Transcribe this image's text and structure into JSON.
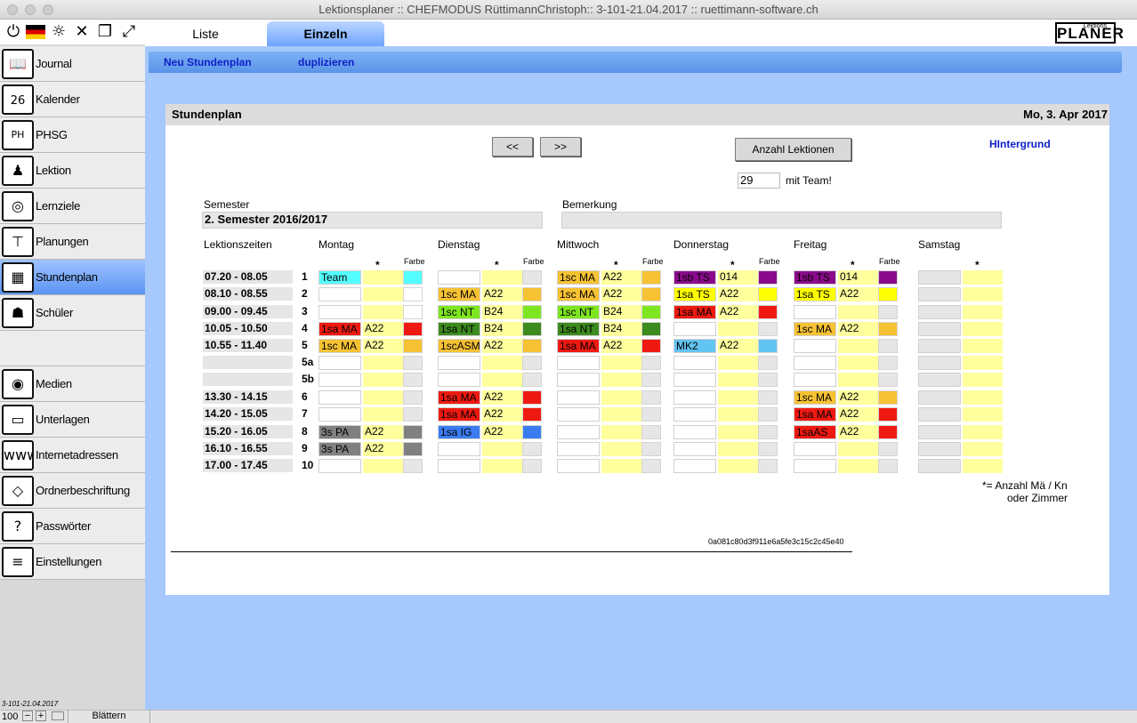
{
  "window": {
    "title": "Lektionsplaner :: CHEFMODUS RüttimannChristoph:: 3-101-21.04.2017 :: ruettimann-software.ch"
  },
  "toolbar_icons": [
    "power-icon",
    "german-flag-icon",
    "lightbulb-icon",
    "close-icon",
    "window-icon",
    "expand-icon"
  ],
  "sidebar": {
    "items": [
      {
        "label": "Journal",
        "icon": "book-icon"
      },
      {
        "label": "Kalender",
        "icon": "calendar-icon"
      },
      {
        "label": "PHSG",
        "icon": "phsg-icon"
      },
      {
        "label": "Lektion",
        "icon": "teacher-icon"
      },
      {
        "label": "Lernziele",
        "icon": "target-icon"
      },
      {
        "label": "Planungen",
        "icon": "org-chart-icon"
      },
      {
        "label": "Stundenplan",
        "icon": "timetable-icon"
      },
      {
        "label": "Schüler",
        "icon": "student-icon"
      },
      {
        "label": "Medien",
        "icon": "camera-icon"
      },
      {
        "label": "Unterlagen",
        "icon": "folder-icon"
      },
      {
        "label": "Internetadressen",
        "icon": "www-icon"
      },
      {
        "label": "Ordnerbeschriftung",
        "icon": "tag-icon"
      },
      {
        "label": "Passwörter",
        "icon": "lock-icon"
      },
      {
        "label": "Einstellungen",
        "icon": "sliders-icon"
      }
    ],
    "calendar_day": "26",
    "phsg_text": "PH",
    "active": "Stundenplan"
  },
  "tabs": [
    {
      "label": "Liste"
    },
    {
      "label": "Einzeln"
    }
  ],
  "logo": {
    "small": "Lektions",
    "big": "PLANER"
  },
  "subnav": {
    "new": "Neu Stundenplan",
    "dup": "duplizieren"
  },
  "panel": {
    "title": "Stundenplan",
    "date": "Mo, 3. Apr 2017",
    "prev": "<<",
    "next": ">>",
    "count_button": "Anzahl Lektionen",
    "count_value": "29",
    "count_suffix": "mit Team!",
    "background_link": "HIntergrund",
    "semester_label": "Semester",
    "semester_value": "2. Semester 2016/2017",
    "remark_label": "Bemerkung",
    "remark_value": "",
    "times_label": "Lektionszeiten",
    "star": "*",
    "farbe": "Farbe",
    "footnote1": "*= Anzahl Mä / Kn",
    "footnote2": "oder Zimmer",
    "hash": "0a081c80d3f911e6a5fe3c15c2c45e40"
  },
  "colors": {
    "cyan": "#55ffff",
    "red": "#ee1a12",
    "orange": "#f6c234",
    "lime": "#7ee620",
    "dkgreen": "#3d8a1f",
    "gray": "#808080",
    "purple": "#8b0a8b",
    "yellow": "#ffff00",
    "ltblue": "#62c4f2",
    "blue": "#3a7df2"
  },
  "timetable": {
    "days": [
      "Montag",
      "Dienstag",
      "Mittwoch",
      "Donnerstag",
      "Freitag",
      "Samstag"
    ],
    "times": [
      "07.20 - 08.05",
      "08.10 - 08.55",
      "09.00 - 09.45",
      "10.05 - 10.50",
      "10.55 - 11.40",
      "",
      "",
      "13.30 - 14.15",
      "14.20 - 15.05",
      "15.20 - 16.05",
      "16.10 - 16.55",
      "17.00 - 17.45"
    ],
    "nums": [
      "1",
      "2",
      "3",
      "4",
      "5",
      "5a",
      "5b",
      "6",
      "7",
      "8",
      "9",
      "10"
    ],
    "cells": [
      [
        [
          "Team",
          "",
          "cyan"
        ],
        [
          "",
          "",
          ""
        ],
        [
          "1sc MA",
          "A22",
          "orange"
        ],
        [
          "1sb TS",
          "014",
          "purple"
        ],
        [
          "1sb TS",
          "014",
          "purple"
        ],
        [
          "",
          "",
          ""
        ]
      ],
      [
        [
          "",
          "",
          ""
        ],
        [
          "1sc MA",
          "A22",
          "orange"
        ],
        [
          "1sc MA",
          "A22",
          "orange"
        ],
        [
          "1sa TS",
          "A22",
          "yellow"
        ],
        [
          "1sa TS",
          "A22",
          "yellow"
        ],
        [
          "",
          "",
          ""
        ]
      ],
      [
        [
          "",
          "",
          ""
        ],
        [
          "1sc NT",
          "B24",
          "lime"
        ],
        [
          "1sc NT",
          "B24",
          "lime"
        ],
        [
          "1sa MA",
          "A22",
          "red"
        ],
        [
          "",
          "",
          ""
        ],
        [
          "",
          "",
          ""
        ]
      ],
      [
        [
          "1sa MA",
          "A22",
          "red"
        ],
        [
          "1sa NT",
          "B24",
          "dkgreen"
        ],
        [
          "1sa NT",
          "B24",
          "dkgreen"
        ],
        [
          "",
          "",
          ""
        ],
        [
          "1sc MA",
          "A22",
          "orange"
        ],
        [
          "",
          "",
          ""
        ]
      ],
      [
        [
          "1sc MA",
          "A22",
          "orange"
        ],
        [
          "1scASM",
          "A22",
          "orange"
        ],
        [
          "1sa MA",
          "A22",
          "red"
        ],
        [
          "MK2",
          "A22",
          "ltblue"
        ],
        [
          "",
          "",
          ""
        ],
        [
          "",
          "",
          ""
        ]
      ],
      [
        [
          "",
          "",
          ""
        ],
        [
          "",
          "",
          ""
        ],
        [
          "",
          "",
          ""
        ],
        [
          "",
          "",
          ""
        ],
        [
          "",
          "",
          ""
        ],
        [
          "",
          "",
          ""
        ]
      ],
      [
        [
          "",
          "",
          ""
        ],
        [
          "",
          "",
          ""
        ],
        [
          "",
          "",
          ""
        ],
        [
          "",
          "",
          ""
        ],
        [
          "",
          "",
          ""
        ],
        [
          "",
          "",
          ""
        ]
      ],
      [
        [
          "",
          "",
          ""
        ],
        [
          "1sa MA",
          "A22",
          "red"
        ],
        [
          "",
          "",
          ""
        ],
        [
          "",
          "",
          ""
        ],
        [
          "1sc MA",
          "A22",
          "orange"
        ],
        [
          "",
          "",
          ""
        ]
      ],
      [
        [
          "",
          "",
          ""
        ],
        [
          "1sa MA",
          "A22",
          "red"
        ],
        [
          "",
          "",
          ""
        ],
        [
          "",
          "",
          ""
        ],
        [
          "1sa MA",
          "A22",
          "red"
        ],
        [
          "",
          "",
          ""
        ]
      ],
      [
        [
          "3s PA",
          "A22",
          "gray"
        ],
        [
          "1sa IG",
          "A22",
          "blue"
        ],
        [
          "",
          "",
          ""
        ],
        [
          "",
          "",
          ""
        ],
        [
          "1saAS",
          "A22",
          "red"
        ],
        [
          "",
          "",
          ""
        ]
      ],
      [
        [
          "3s PA",
          "A22",
          "gray"
        ],
        [
          "",
          "",
          ""
        ],
        [
          "",
          "",
          ""
        ],
        [
          "",
          "",
          ""
        ],
        [
          "",
          "",
          ""
        ],
        [
          "",
          "",
          ""
        ]
      ],
      [
        [
          "",
          "",
          ""
        ],
        [
          "",
          "",
          ""
        ],
        [
          "",
          "",
          ""
        ],
        [
          "",
          "",
          ""
        ],
        [
          "",
          "",
          ""
        ],
        [
          "",
          "",
          ""
        ]
      ]
    ]
  },
  "status": {
    "version": "3-101-21.04.2017",
    "zoom": "100",
    "mode": "Blättern"
  }
}
